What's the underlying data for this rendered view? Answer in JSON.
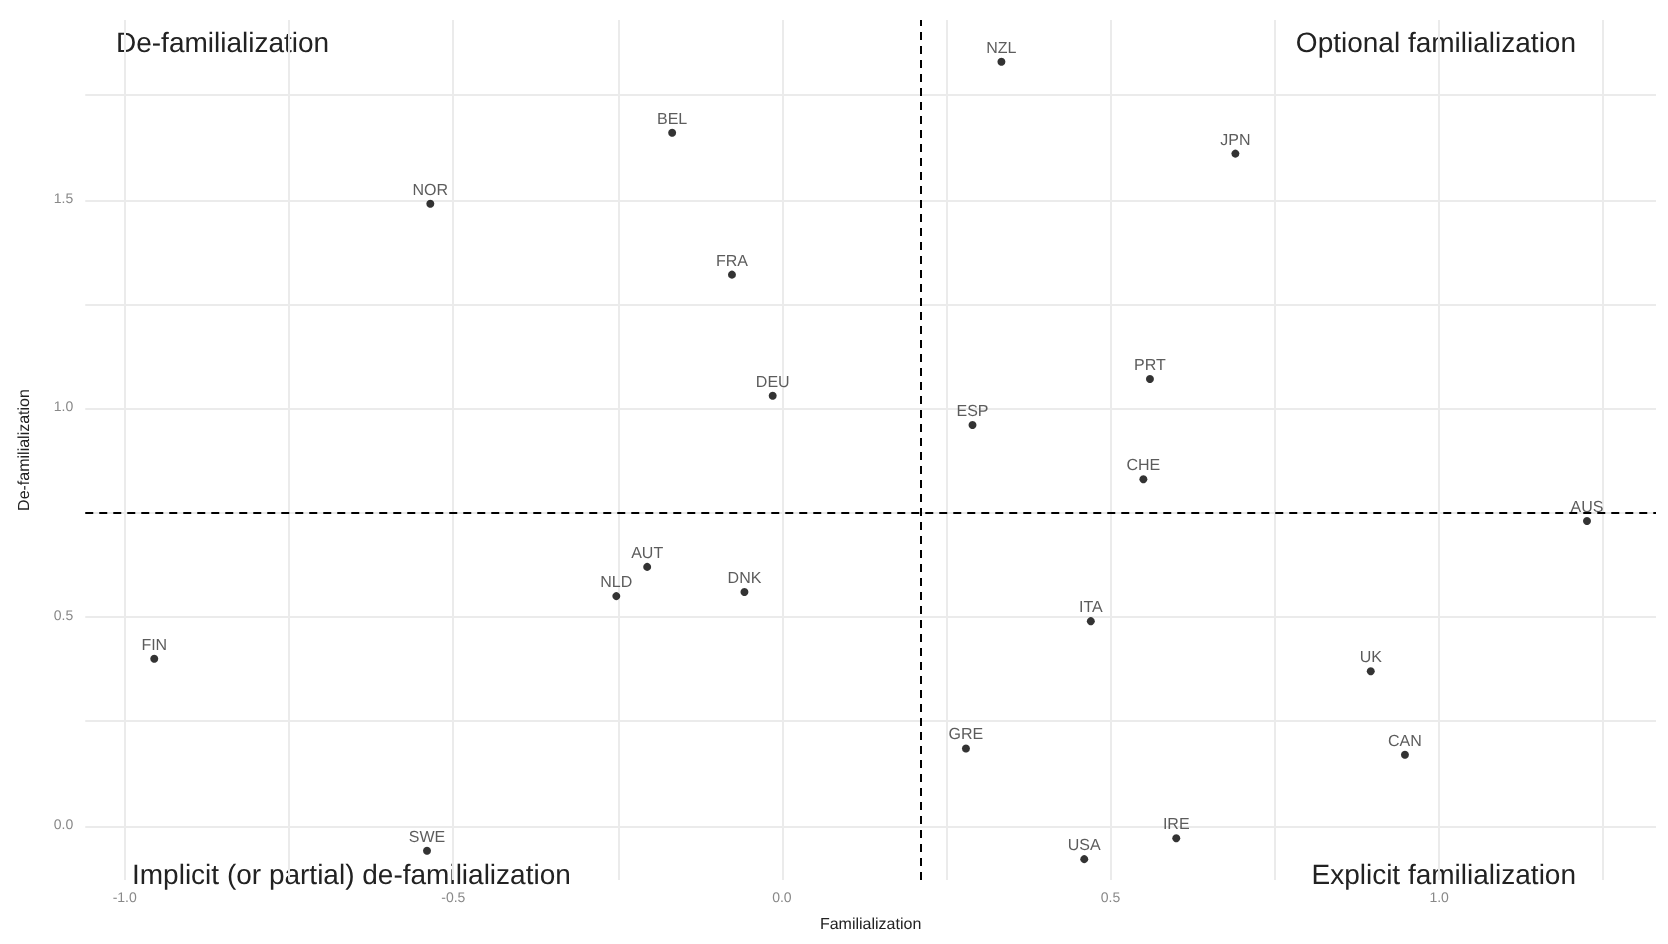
{
  "chart_data": {
    "type": "scatter",
    "xlabel": "Familialization",
    "ylabel": "De-familialization",
    "annotations": [
      "De-familialization",
      "Optional familialization",
      "Implicit (or partial) de-familialization",
      "Explicit familialization"
    ],
    "series": [
      {
        "color": "#000000",
        "x": [
          -0.535,
          -0.167,
          -0.076,
          -0.014,
          0.334,
          0.69,
          0.56,
          0.29,
          0.55,
          -0.205,
          -0.252,
          -0.057,
          -0.955,
          -0.54,
          1.225,
          0.47,
          0.896,
          0.28,
          0.948,
          0.6,
          0.46
        ],
        "values": [
          1.49,
          1.66,
          1.32,
          1.03,
          1.83,
          1.61,
          1.07,
          0.96,
          0.83,
          0.62,
          0.55,
          0.56,
          0.4,
          -0.06,
          0.73,
          0.49,
          0.37,
          0.185,
          0.17,
          -0.03,
          -0.08
        ],
        "value_labels": [
          "NOR",
          "BEL",
          "FRA",
          "DEU",
          "NZL",
          "JPN",
          "PRT",
          "ESP",
          "CHE",
          "AUT",
          "NLD",
          "DNK",
          "FIN",
          "SWE",
          "AUS",
          "ITA",
          "UK",
          "GRE",
          "CAN",
          "IRE",
          "USA"
        ]
      }
    ],
    "xlim": [
      -1.06,
      1.33
    ],
    "ylim": [
      -0.13,
      1.93
    ],
    "xticks": [
      {
        "value": -1,
        "label": "-1.0"
      },
      {
        "value": -0.75,
        "label": null
      },
      {
        "value": -0.5,
        "label": "-0.5"
      },
      {
        "value": -0.25,
        "label": null
      },
      {
        "value": 0,
        "label": "0.0"
      },
      {
        "value": 0.25,
        "label": null
      },
      {
        "value": 0.5,
        "label": "0.5"
      },
      {
        "value": 0.75,
        "label": null
      },
      {
        "value": 1,
        "label": "1.0"
      },
      {
        "value": 1.25,
        "label": null
      }
    ],
    "yticks": [
      {
        "value": 0,
        "label": "0.0"
      },
      {
        "value": 0.25,
        "label": null
      },
      {
        "value": 0.5,
        "label": "0.5"
      },
      {
        "value": 0.75,
        "label": null
      },
      {
        "value": 1,
        "label": "1.0"
      },
      {
        "value": 1.25,
        "label": null
      },
      {
        "value": 1.5,
        "label": "1.5"
      },
      {
        "value": 1.75,
        "label": null
      }
    ],
    "ref_lines": [
      {
        "axis": "x",
        "value": 0.214,
        "color": "#000000",
        "line_style": "dashed"
      },
      {
        "axis": "y",
        "value": 0.75,
        "color": "#000000",
        "line_style": "dashed"
      }
    ],
    "grid": true,
    "marker": "circle"
  }
}
